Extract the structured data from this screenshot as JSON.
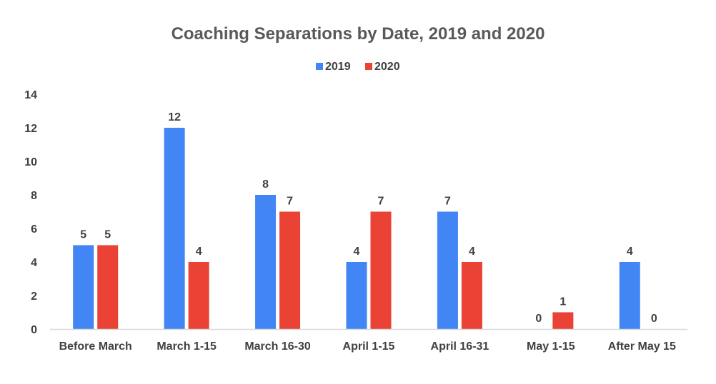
{
  "chart_data": {
    "type": "bar",
    "title": "Coaching Separations by Date, 2019 and 2020",
    "xlabel": "",
    "ylabel": "",
    "categories": [
      "Before March",
      "March 1-15",
      "March 16-30",
      "April 1-15",
      "April 16-31",
      "May 1-15",
      "After May 15"
    ],
    "series": [
      {
        "name": "2019",
        "color": "#4285F4",
        "values": [
          5,
          12,
          8,
          4,
          7,
          0,
          4
        ]
      },
      {
        "name": "2020",
        "color": "#EA4335",
        "values": [
          5,
          4,
          7,
          7,
          4,
          1,
          0
        ]
      }
    ],
    "ylim": [
      0,
      14
    ],
    "yticks": [
      0,
      2,
      4,
      6,
      8,
      10,
      12,
      14
    ],
    "grid": false,
    "legend_position": "top",
    "data_labels": true
  }
}
